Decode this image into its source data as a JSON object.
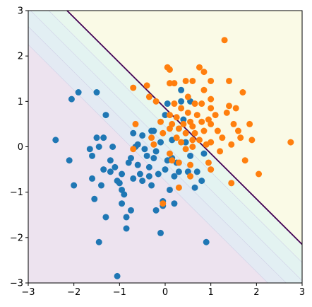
{
  "chart_data": {
    "type": "scatter",
    "title": "",
    "xlabel": "",
    "ylabel": "",
    "xlim": [
      -3,
      3
    ],
    "ylim": [
      -3,
      3
    ],
    "xticks": [
      -3,
      -2,
      -1,
      0,
      1,
      2,
      3
    ],
    "yticks": [
      -3,
      -2,
      -1,
      0,
      1,
      2,
      3
    ],
    "xtick_labels": [
      "−3",
      "−2",
      "−1",
      "0",
      "1",
      "2",
      "3"
    ],
    "ytick_labels": [
      "−3",
      "−2",
      "−1",
      "0",
      "1",
      "2",
      "3"
    ],
    "grid": false,
    "background": {
      "type": "decision-function-contour",
      "decision_boundary": {
        "description": "line x + y = 0.85 (drawn in dark purple)",
        "intercept": 0.85,
        "color": "#440154"
      },
      "fill_colors": [
        "#ede3ef",
        "#e6e6f2",
        "#e3eaf3",
        "#e2eff3",
        "#e3f3f1",
        "#e8f7ee",
        "#f0f8ea",
        "#f6f9e6",
        "#fafae6"
      ],
      "lower_region_color": "#ede3ef",
      "upper_region_color": "#fafae6"
    },
    "series": [
      {
        "color": "#1f77b4",
        "points": [
          [
            -2.4,
            0.15
          ],
          [
            -2.1,
            -0.3
          ],
          [
            -2.0,
            -0.85
          ],
          [
            -1.9,
            1.2
          ],
          [
            -2.05,
            1.05
          ],
          [
            -1.5,
            1.2
          ],
          [
            -1.65,
            -0.05
          ],
          [
            -1.6,
            -0.2
          ],
          [
            -1.6,
            -0.7
          ],
          [
            -1.55,
            -1.15
          ],
          [
            -1.5,
            0.2
          ],
          [
            -1.45,
            0.0
          ],
          [
            -1.35,
            0.2
          ],
          [
            -1.3,
            0.7
          ],
          [
            -1.35,
            -0.5
          ],
          [
            -1.4,
            -0.85
          ],
          [
            -1.45,
            -2.1
          ],
          [
            -1.3,
            -1.55
          ],
          [
            -1.2,
            -0.3
          ],
          [
            -1.15,
            0.0
          ],
          [
            -1.1,
            -0.45
          ],
          [
            -1.05,
            -0.75
          ],
          [
            -1.0,
            -0.8
          ],
          [
            -0.95,
            -0.6
          ],
          [
            -0.9,
            -1.05
          ],
          [
            -0.85,
            -1.55
          ],
          [
            -0.85,
            -1.8
          ],
          [
            -0.75,
            -0.25
          ],
          [
            -0.7,
            0.3
          ],
          [
            -0.65,
            0.0
          ],
          [
            -0.6,
            -0.4
          ],
          [
            -0.55,
            -0.6
          ],
          [
            -0.5,
            0.25
          ],
          [
            -0.45,
            -0.05
          ],
          [
            -0.4,
            -0.2
          ],
          [
            -0.35,
            -0.45
          ],
          [
            -0.3,
            -0.85
          ],
          [
            -0.3,
            0.35
          ],
          [
            -0.25,
            0.35
          ],
          [
            -0.2,
            -0.1
          ],
          [
            -0.15,
            -0.6
          ],
          [
            -0.2,
            -1.4
          ],
          [
            -0.1,
            -1.9
          ],
          [
            -0.05,
            -1.3
          ],
          [
            0.0,
            -0.5
          ],
          [
            0.05,
            -0.3
          ],
          [
            0.0,
            0.7
          ],
          [
            0.05,
            0.95
          ],
          [
            0.15,
            0.15
          ],
          [
            0.15,
            -0.25
          ],
          [
            0.2,
            -0.65
          ],
          [
            0.25,
            -0.35
          ],
          [
            0.3,
            -0.55
          ],
          [
            0.35,
            1.0
          ],
          [
            0.4,
            0.6
          ],
          [
            0.45,
            0.1
          ],
          [
            0.5,
            -0.55
          ],
          [
            0.55,
            -0.2
          ],
          [
            0.65,
            -0.9
          ],
          [
            0.7,
            -0.55
          ],
          [
            0.8,
            -0.75
          ],
          [
            0.85,
            -0.15
          ],
          [
            0.9,
            -2.1
          ],
          [
            0.55,
            1.0
          ],
          [
            0.35,
            1.25
          ],
          [
            -1.05,
            -2.85
          ],
          [
            -0.95,
            -0.95
          ],
          [
            -1.2,
            -0.55
          ],
          [
            -0.8,
            -0.35
          ],
          [
            -0.7,
            -0.7
          ],
          [
            -0.6,
            0.05
          ],
          [
            -0.35,
            -0.65
          ],
          [
            -0.25,
            -0.25
          ],
          [
            -0.05,
            -1.2
          ],
          [
            0.1,
            -0.95
          ],
          [
            -0.75,
            -1.4
          ],
          [
            -0.95,
            -1.25
          ],
          [
            -0.5,
            -0.75
          ],
          [
            0.2,
            -1.25
          ],
          [
            -0.1,
            0.1
          ]
        ]
      },
      {
        "color": "#ff7f0e",
        "points": [
          [
            -0.7,
            1.3
          ],
          [
            -0.65,
            0.5
          ],
          [
            -0.7,
            -0.05
          ],
          [
            -0.4,
            1.35
          ],
          [
            -0.35,
            1.1
          ],
          [
            -0.3,
            0.2
          ],
          [
            -0.25,
            0.05
          ],
          [
            -0.2,
            1.0
          ],
          [
            -0.1,
            0.55
          ],
          [
            -0.05,
            0.3
          ],
          [
            -0.05,
            -1.25
          ],
          [
            0.05,
            1.75
          ],
          [
            0.1,
            1.7
          ],
          [
            0.1,
            1.4
          ],
          [
            0.1,
            0.7
          ],
          [
            0.1,
            0.4
          ],
          [
            0.1,
            -0.15
          ],
          [
            0.15,
            -0.3
          ],
          [
            0.2,
            1.4
          ],
          [
            0.2,
            0.95
          ],
          [
            0.25,
            0.65
          ],
          [
            0.3,
            0.4
          ],
          [
            0.3,
            -0.35
          ],
          [
            0.3,
            -0.9
          ],
          [
            0.35,
            0.85
          ],
          [
            0.35,
            0.1
          ],
          [
            0.4,
            0.5
          ],
          [
            0.45,
            0.3
          ],
          [
            0.45,
            -0.05
          ],
          [
            0.5,
            1.1
          ],
          [
            0.5,
            0.75
          ],
          [
            0.55,
            0.55
          ],
          [
            0.55,
            -0.4
          ],
          [
            0.6,
            1.45
          ],
          [
            0.6,
            0.45
          ],
          [
            0.6,
            0.15
          ],
          [
            0.6,
            0.0
          ],
          [
            0.65,
            0.3
          ],
          [
            0.7,
            0.7
          ],
          [
            0.75,
            1.75
          ],
          [
            0.75,
            0.15
          ],
          [
            0.8,
            0.95
          ],
          [
            0.8,
            0.55
          ],
          [
            0.85,
            1.65
          ],
          [
            0.85,
            1.25
          ],
          [
            0.85,
            0.35
          ],
          [
            0.9,
            0.05
          ],
          [
            0.95,
            0.6
          ],
          [
            0.95,
            -0.35
          ],
          [
            1.0,
            1.45
          ],
          [
            1.0,
            1.05
          ],
          [
            1.0,
            0.85
          ],
          [
            1.0,
            0.5
          ],
          [
            1.0,
            0.1
          ],
          [
            1.0,
            -0.5
          ],
          [
            1.1,
            0.7
          ],
          [
            1.15,
            0.35
          ],
          [
            1.2,
            -0.1
          ],
          [
            1.25,
            0.2
          ],
          [
            1.3,
            2.35
          ],
          [
            1.35,
            0.75
          ],
          [
            1.4,
            1.45
          ],
          [
            1.4,
            0.9
          ],
          [
            1.45,
            0.05
          ],
          [
            1.45,
            -0.8
          ],
          [
            1.5,
            0.5
          ],
          [
            1.55,
            0.85
          ],
          [
            1.6,
            0.35
          ],
          [
            1.65,
            0.2
          ],
          [
            1.7,
            1.2
          ],
          [
            1.75,
            -0.3
          ],
          [
            1.85,
            0.5
          ],
          [
            1.9,
            0.15
          ],
          [
            2.05,
            -0.6
          ],
          [
            2.75,
            0.1
          ],
          [
            0.65,
            0.95
          ],
          [
            0.45,
            1.45
          ],
          [
            0.25,
            0.2
          ],
          [
            0.15,
            0.5
          ],
          [
            0.55,
            -0.65
          ]
        ]
      }
    ]
  }
}
